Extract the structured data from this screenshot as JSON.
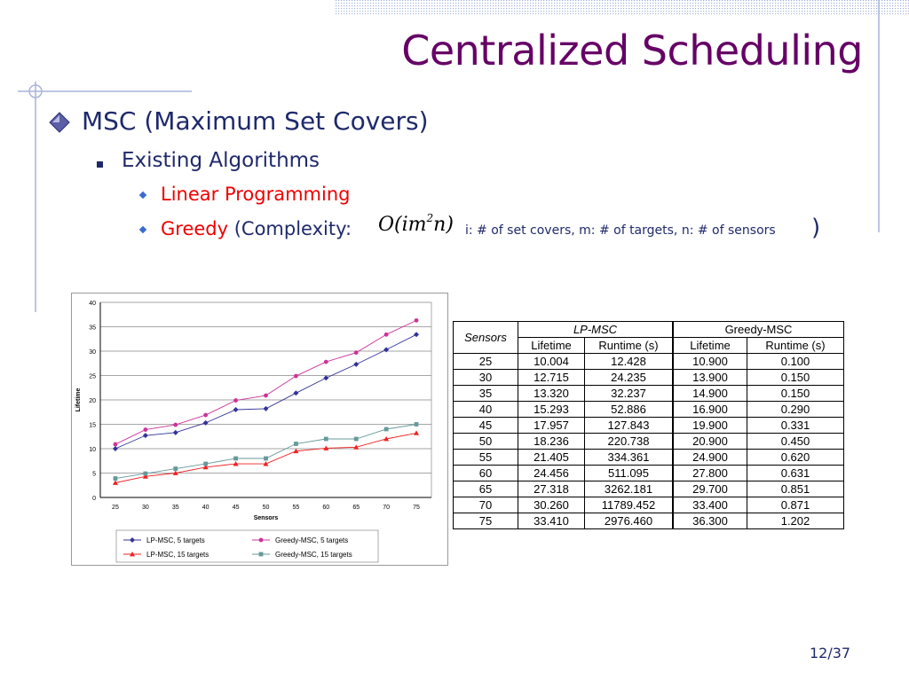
{
  "slide": {
    "title": "Centralized Scheduling",
    "bullet1": "MSC (Maximum Set Covers)",
    "bullet2": "Existing Algorithms",
    "bullet3a": "Linear Programming",
    "bullet3b_red": "Greedy",
    "bullet3b_rest": " (Complexity:",
    "formula_O": "O(im",
    "formula_exp": "2",
    "formula_end": "n)",
    "formula_note": "i: # of set covers, m: # of targets, n: # of sensors",
    "close_paren": ")",
    "page_number": "12/37",
    "colors": {
      "title": "#660066",
      "text": "#1f2a6b",
      "highlight": "#ee0000"
    }
  },
  "chart_data": {
    "type": "line",
    "x": [
      25,
      30,
      35,
      40,
      45,
      50,
      55,
      60,
      65,
      70,
      75
    ],
    "xlabel": "Sensors",
    "ylabel": "Lifetime",
    "ylim": [
      0,
      40
    ],
    "yticks": [
      0,
      5,
      10,
      15,
      20,
      25,
      30,
      35,
      40
    ],
    "grid": true,
    "legend_position": "bottom",
    "series": [
      {
        "name": "LP-MSC, 5 targets",
        "color": "#333399",
        "marker": "diamond",
        "values": [
          10.0,
          12.7,
          13.3,
          15.3,
          18.0,
          18.2,
          21.4,
          24.5,
          27.3,
          30.3,
          33.4
        ]
      },
      {
        "name": "Greedy-MSC, 5 targets",
        "color": "#cc3399",
        "marker": "circle",
        "values": [
          10.9,
          13.9,
          14.9,
          16.9,
          19.9,
          20.9,
          24.9,
          27.8,
          29.7,
          33.4,
          36.3
        ]
      },
      {
        "name": "LP-MSC, 15 targets",
        "color": "#ee2222",
        "marker": "triangle",
        "values": [
          3.0,
          4.3,
          5.0,
          6.2,
          6.9,
          6.9,
          9.5,
          10.1,
          10.3,
          12.0,
          13.2
        ]
      },
      {
        "name": "Greedy-MSC, 15 targets",
        "color": "#669999",
        "marker": "square",
        "values": [
          3.9,
          4.9,
          5.9,
          6.9,
          8.0,
          8.0,
          11.0,
          12.0,
          12.0,
          14.0,
          15.0
        ]
      }
    ]
  },
  "table": {
    "sensors_header": "Sensors",
    "group_headers": [
      "LP-MSC",
      "Greedy-MSC"
    ],
    "sub_headers": [
      "Lifetime",
      "Runtime (s)",
      "Lifetime",
      "Runtime (s)"
    ],
    "rows": [
      [
        "25",
        "10.004",
        "12.428",
        "10.900",
        "0.100"
      ],
      [
        "30",
        "12.715",
        "24.235",
        "13.900",
        "0.150"
      ],
      [
        "35",
        "13.320",
        "32.237",
        "14.900",
        "0.150"
      ],
      [
        "40",
        "15.293",
        "52.886",
        "16.900",
        "0.290"
      ],
      [
        "45",
        "17.957",
        "127.843",
        "19.900",
        "0.331"
      ],
      [
        "50",
        "18.236",
        "220.738",
        "20.900",
        "0.450"
      ],
      [
        "55",
        "21.405",
        "334.361",
        "24.900",
        "0.620"
      ],
      [
        "60",
        "24.456",
        "511.095",
        "27.800",
        "0.631"
      ],
      [
        "65",
        "27.318",
        "3262.181",
        "29.700",
        "0.851"
      ],
      [
        "70",
        "30.260",
        "11789.452",
        "33.400",
        "0.871"
      ],
      [
        "75",
        "33.410",
        "2976.460",
        "36.300",
        "1.202"
      ]
    ]
  }
}
